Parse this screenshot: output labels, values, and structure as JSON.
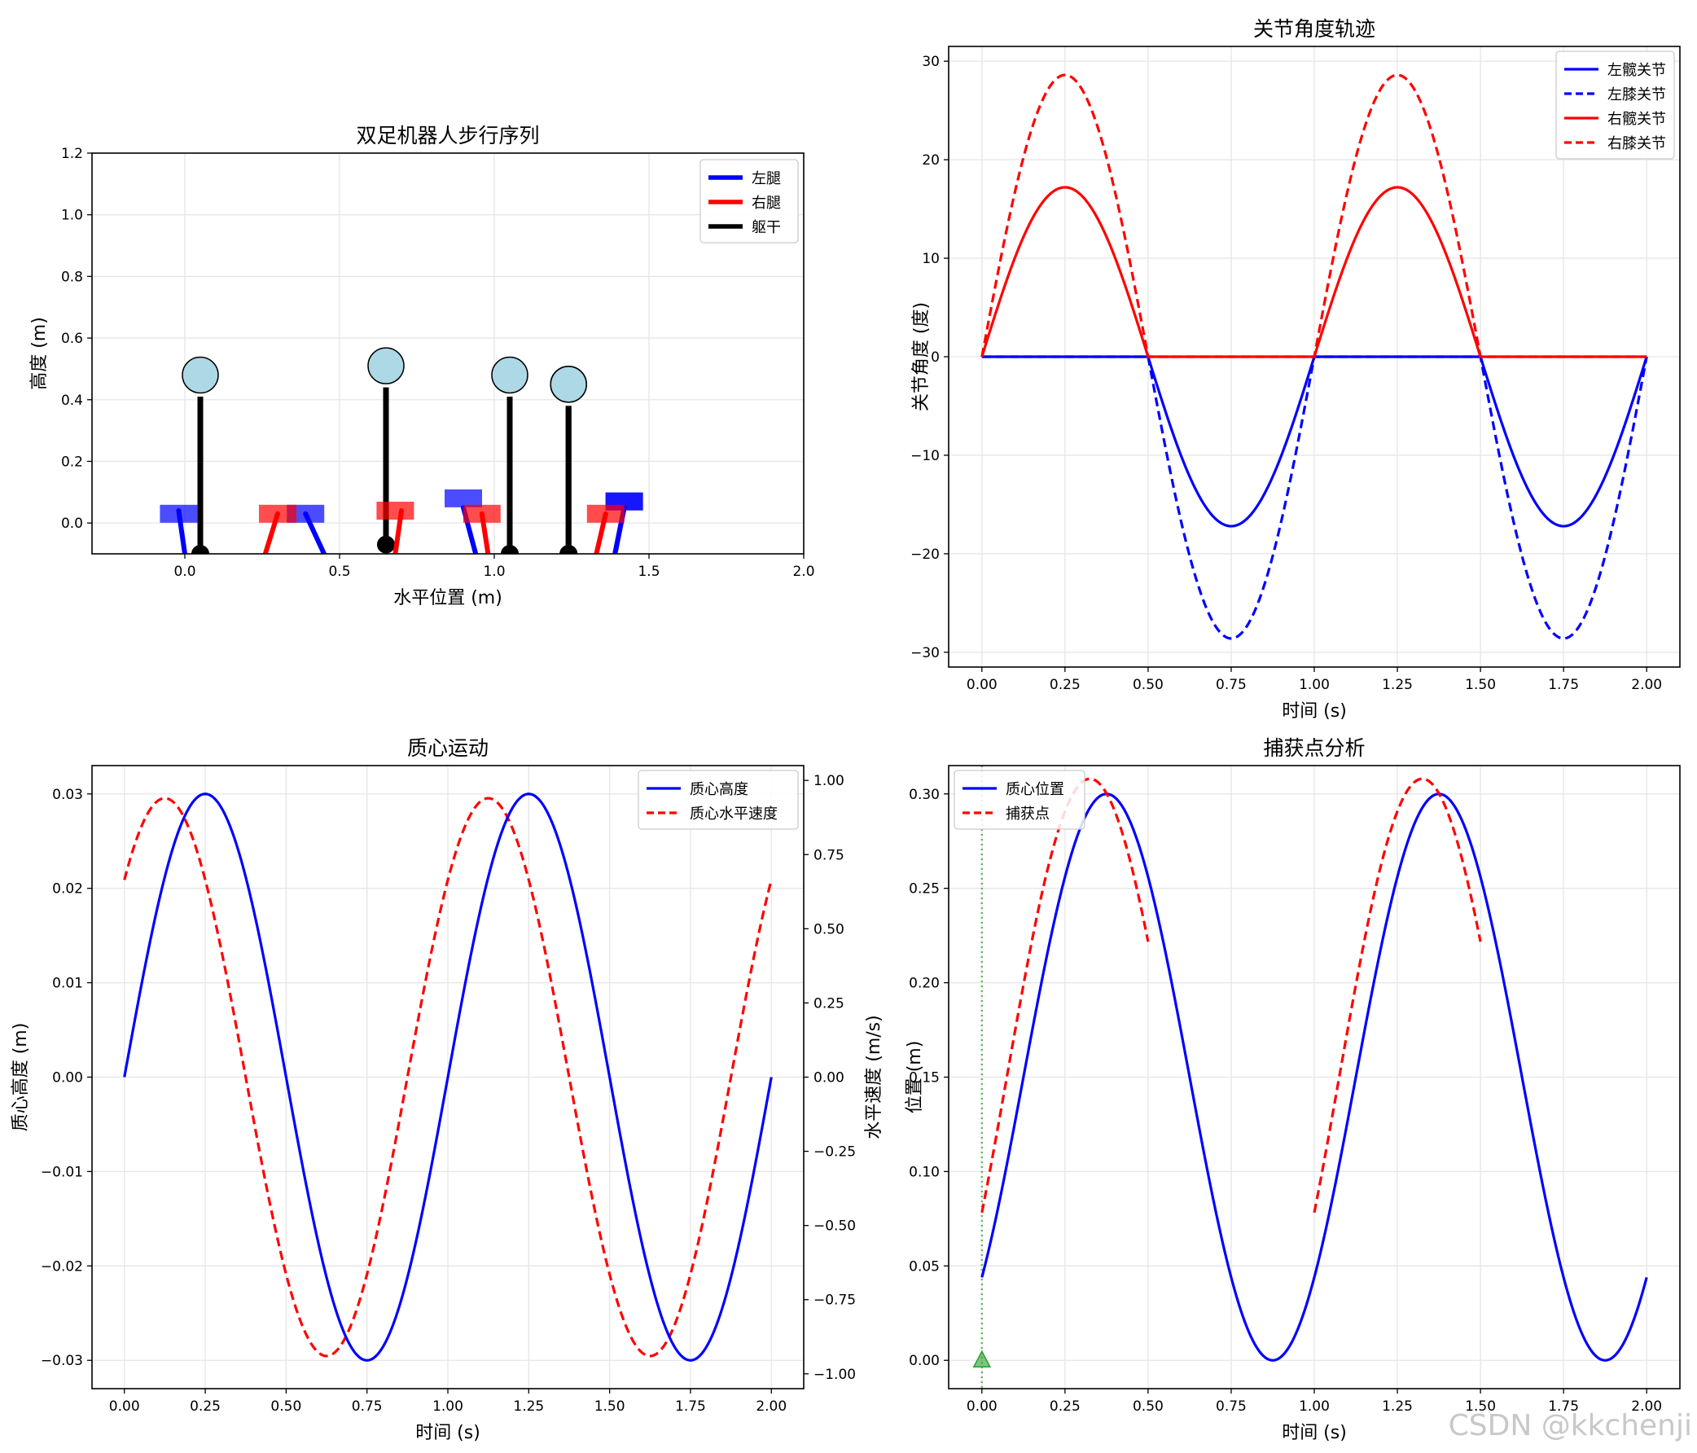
{
  "watermark": "CSDN @kkchenji",
  "chart_data": [
    {
      "id": "walk",
      "type": "scatter",
      "title": "双足机器人步行序列",
      "xlabel": "水平位置 (m)",
      "ylabel": "高度 (m)",
      "xlim": [
        -0.3,
        2.0
      ],
      "ylim": [
        -0.1,
        1.2
      ],
      "xticks": [
        0.0,
        0.5,
        1.0,
        1.5,
        2.0
      ],
      "xtick_labels": [
        "0.0",
        "0.5",
        "1.0",
        "1.5",
        "2.0"
      ],
      "yticks": [
        0.0,
        0.2,
        0.4,
        0.6,
        0.8,
        1.0,
        1.2
      ],
      "ytick_labels": [
        "0.0",
        "0.2",
        "0.4",
        "0.6",
        "0.8",
        "1.0",
        "1.2"
      ],
      "grid": true,
      "legend_position": "top-right",
      "legend": [
        {
          "label": "左腿",
          "color": "#0000ff"
        },
        {
          "label": "右腿",
          "color": "#ff0000"
        },
        {
          "label": "躯干",
          "color": "#000000"
        }
      ],
      "colors": {
        "left": "#0000ff",
        "right": "#ff0000",
        "torso": "#000000",
        "head": "#add8e6"
      },
      "poses": [
        {
          "hip_x": 0.05,
          "hip_y": -0.1,
          "torso_top_y": 0.41,
          "head_y": 0.48,
          "left_leg": [
            [
              0.0,
              -0.1
            ],
            [
              -0.02,
              0.04
            ]
          ],
          "right_leg": [
            [
              0.05,
              -0.1
            ],
            [
              0.05,
              -0.09
            ]
          ],
          "left_foot": [
            -0.02,
            0.03
          ],
          "right_foot": null
        },
        {
          "hip_x": 0.65,
          "hip_y": -0.07,
          "torso_top_y": 0.44,
          "head_y": 0.51,
          "left_leg": [
            [
              0.45,
              -0.1
            ],
            [
              0.39,
              0.03
            ]
          ],
          "right_leg": [
            [
              0.26,
              -0.1
            ],
            [
              0.3,
              0.03
            ]
          ],
          "left_foot": [
            0.39,
            0.03
          ],
          "right_foot": [
            0.3,
            0.03
          ]
        },
        {
          "hip_x": 1.05,
          "hip_y": -0.1,
          "torso_top_y": 0.41,
          "head_y": 0.48,
          "left_leg": [
            [
              0.94,
              -0.1
            ],
            [
              0.9,
              0.05
            ]
          ],
          "right_leg": [
            [
              0.68,
              -0.1
            ],
            [
              0.7,
              0.04
            ]
          ],
          "left_foot": [
            0.9,
            0.08
          ],
          "right_foot": [
            0.68,
            0.04
          ]
        },
        {
          "hip_x": 1.24,
          "hip_y": -0.1,
          "torso_top_y": 0.38,
          "head_y": 0.45,
          "left_leg": [
            [
              1.39,
              -0.1
            ],
            [
              1.42,
              0.05
            ]
          ],
          "right_leg": [
            [
              0.98,
              -0.1
            ],
            [
              0.96,
              0.03
            ]
          ],
          "left_foot": [
            1.42,
            0.07
          ],
          "right_foot": [
            0.96,
            0.03
          ]
        },
        {
          "hip_x": 1.24,
          "hip_y": -0.1,
          "torso_top_y": 0.38,
          "head_y": 0.45,
          "left_leg": [
            [
              1.39,
              -0.1
            ],
            [
              1.42,
              0.05
            ]
          ],
          "right_leg": [
            [
              1.33,
              -0.1
            ],
            [
              1.36,
              0.03
            ]
          ],
          "left_foot": [
            1.42,
            0.07
          ],
          "right_foot": [
            1.36,
            0.03
          ]
        }
      ]
    },
    {
      "id": "joints",
      "type": "line",
      "title": "关节角度轨迹",
      "xlabel": "时间 (s)",
      "ylabel": "关节角度 (度)",
      "xlim": [
        -0.1,
        2.1
      ],
      "ylim": [
        -31.5,
        31.5
      ],
      "xticks": [
        0.0,
        0.25,
        0.5,
        0.75,
        1.0,
        1.25,
        1.5,
        1.75,
        2.0
      ],
      "xtick_labels": [
        "0.00",
        "0.25",
        "0.50",
        "0.75",
        "1.00",
        "1.25",
        "1.50",
        "1.75",
        "2.00"
      ],
      "yticks": [
        -30,
        -20,
        -10,
        0,
        10,
        20,
        30
      ],
      "ytick_labels": [
        "−30",
        "−20",
        "−10",
        "0",
        "10",
        "20",
        "30"
      ],
      "grid": true,
      "legend_position": "top-right",
      "series": [
        {
          "name": "左髋关节",
          "color": "#0000ff",
          "dash": false,
          "amplitude": 17.2,
          "phase": "left"
        },
        {
          "name": "左膝关节",
          "color": "#0000ff",
          "dash": true,
          "amplitude": 28.6,
          "phase": "left"
        },
        {
          "name": "右髋关节",
          "color": "#ff0000",
          "dash": false,
          "amplitude": 17.2,
          "phase": "right"
        },
        {
          "name": "右膝关节",
          "color": "#ff0000",
          "dash": true,
          "amplitude": 28.6,
          "phase": "right"
        }
      ]
    },
    {
      "id": "com",
      "type": "line",
      "title": "质心运动",
      "xlabel": "时间 (s)",
      "ylabel": "质心高度 (m)",
      "ylabel_right": "水平速度 (m/s)",
      "xlim": [
        -0.1,
        2.1
      ],
      "ylim": [
        -0.033,
        0.033
      ],
      "ylim_right": [
        -1.05,
        1.05
      ],
      "xticks": [
        0.0,
        0.25,
        0.5,
        0.75,
        1.0,
        1.25,
        1.5,
        1.75,
        2.0
      ],
      "xtick_labels": [
        "0.00",
        "0.25",
        "0.50",
        "0.75",
        "1.00",
        "1.25",
        "1.50",
        "1.75",
        "2.00"
      ],
      "yticks": [
        -0.03,
        -0.02,
        -0.01,
        0.0,
        0.01,
        0.02,
        0.03
      ],
      "ytick_labels": [
        "−0.03",
        "−0.02",
        "−0.01",
        "0.00",
        "0.01",
        "0.02",
        "0.03"
      ],
      "yticks_right": [
        -1.0,
        -0.75,
        -0.5,
        -0.25,
        0.0,
        0.25,
        0.5,
        0.75,
        1.0
      ],
      "ytick_labels_right": [
        "−1.00",
        "−0.75",
        "−0.50",
        "−0.25",
        "0.00",
        "0.25",
        "0.50",
        "0.75",
        "1.00"
      ],
      "grid": true,
      "legend_position": "top-right",
      "series": [
        {
          "name": "质心高度",
          "color": "#0000ff",
          "dash": false,
          "amplitude": 0.03,
          "period": 1.0,
          "phase": 0
        },
        {
          "name": "质心水平速度",
          "color": "#ff0000",
          "dash": true,
          "amplitude": 0.94,
          "period": 1.0,
          "phase": 0.75
        }
      ]
    },
    {
      "id": "capture",
      "type": "line",
      "title": "捕获点分析",
      "xlabel": "时间 (s)",
      "ylabel": "位置 (m)",
      "xlim": [
        -0.1,
        2.1
      ],
      "ylim": [
        -0.015,
        0.315
      ],
      "xticks": [
        0.0,
        0.25,
        0.5,
        0.75,
        1.0,
        1.25,
        1.5,
        1.75,
        2.0
      ],
      "xtick_labels": [
        "0.00",
        "0.25",
        "0.50",
        "0.75",
        "1.00",
        "1.25",
        "1.50",
        "1.75",
        "2.00"
      ],
      "yticks": [
        0.0,
        0.05,
        0.1,
        0.15,
        0.2,
        0.25,
        0.3
      ],
      "ytick_labels": [
        "0.00",
        "0.05",
        "0.10",
        "0.15",
        "0.20",
        "0.25",
        "0.30"
      ],
      "grid": true,
      "legend_position": "top-left",
      "marker": {
        "x": 0.0,
        "y": 0.0,
        "color": "#2ca02c"
      },
      "series": [
        {
          "name": "质心位置",
          "color": "#0000ff",
          "dash": false
        },
        {
          "name": "捕获点",
          "color": "#ff0000",
          "dash": true
        }
      ]
    }
  ]
}
